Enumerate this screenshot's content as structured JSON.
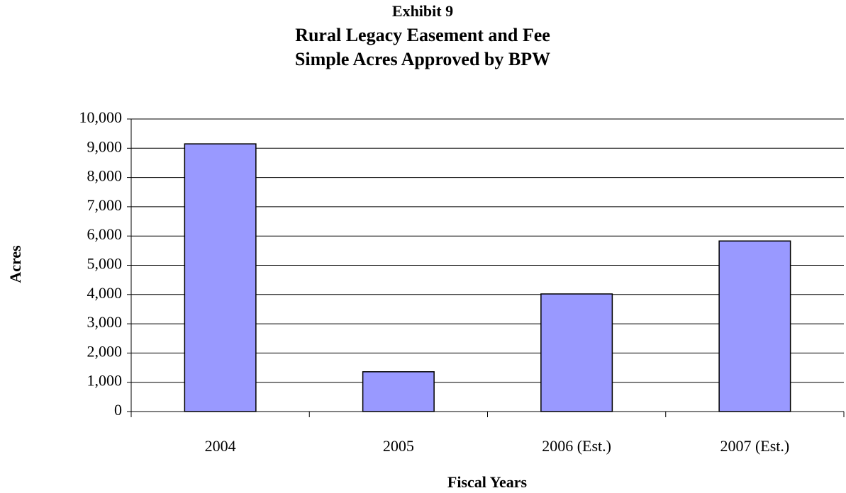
{
  "chart_data": {
    "type": "bar",
    "title": [
      "Exhibit 9",
      "Rural Legacy Easement and Fee",
      "Simple Acres Approved by BPW"
    ],
    "x_label": "Fiscal Years",
    "y_label": "Acres",
    "categories": [
      "2004",
      "2005",
      "2006 (Est.)",
      "2007 (Est.)"
    ],
    "values": [
      9150,
      1360,
      4020,
      5830
    ],
    "color": "#9999ff",
    "ylim": [
      0,
      10000
    ],
    "yticks": [
      0,
      {
        "value": 1000,
        "label": "1,000"
      },
      {
        "value": 2000,
        "label": "2,000"
      },
      {
        "value": 3000,
        "label": "3,000"
      },
      {
        "value": 4000,
        "label": "4,000"
      },
      {
        "value": 5000,
        "label": "5,000"
      },
      {
        "value": 6000,
        "label": "6,000"
      },
      {
        "value": 7000,
        "label": "7,000"
      },
      {
        "value": 8000,
        "label": "8,000"
      },
      {
        "value": 9000,
        "label": "9,000"
      },
      {
        "value": 10000,
        "label": "10,000"
      }
    ],
    "grid": true
  }
}
